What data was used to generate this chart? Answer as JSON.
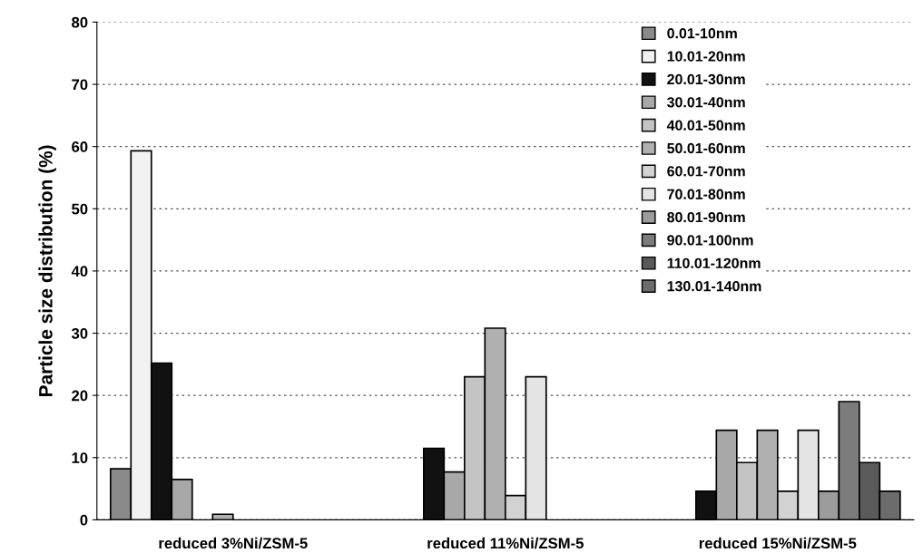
{
  "chart_data": {
    "type": "bar",
    "ylabel": "Particle size distribution (%)",
    "categories": [
      "reduced 3%Ni/ZSM-5",
      "reduced 11%Ni/ZSM-5",
      "reduced 15%Ni/ZSM-5"
    ],
    "ylim": [
      0,
      80
    ],
    "yticks": [
      0,
      10,
      20,
      30,
      40,
      50,
      60,
      70,
      80
    ],
    "grid": "y",
    "legend": "top right",
    "series": [
      {
        "name": "0.01-10nm",
        "color": "#8a8a8a",
        "values": [
          8.2,
          null,
          null
        ]
      },
      {
        "name": "10.01-20nm",
        "color": "#f2f2f2",
        "values": [
          59.3,
          null,
          null
        ]
      },
      {
        "name": "20.01-30nm",
        "color": "#111111",
        "values": [
          25.2,
          11.5,
          4.6
        ]
      },
      {
        "name": "30.01-40nm",
        "color": "#a8a8a8",
        "values": [
          6.5,
          7.7,
          14.4
        ]
      },
      {
        "name": "40.01-50nm",
        "color": "#c4c4c4",
        "values": [
          null,
          23.0,
          9.2
        ]
      },
      {
        "name": "50.01-60nm",
        "color": "#b0b0b0",
        "values": [
          0.9,
          30.8,
          14.4
        ]
      },
      {
        "name": "60.01-70nm",
        "color": "#d2d2d2",
        "values": [
          null,
          3.9,
          4.6
        ]
      },
      {
        "name": "70.01-80nm",
        "color": "#e4e4e4",
        "values": [
          null,
          23.0,
          14.4
        ]
      },
      {
        "name": "80.01-90nm",
        "color": "#9c9c9c",
        "values": [
          null,
          null,
          4.6
        ]
      },
      {
        "name": "90.01-100nm",
        "color": "#7c7c7c",
        "values": [
          null,
          null,
          19.0
        ]
      },
      {
        "name": "110.01-120nm",
        "color": "#5a5a5a",
        "values": [
          null,
          null,
          9.2
        ]
      },
      {
        "name": "130.01-140nm",
        "color": "#6c6c6c",
        "values": [
          null,
          null,
          4.6
        ]
      }
    ]
  }
}
